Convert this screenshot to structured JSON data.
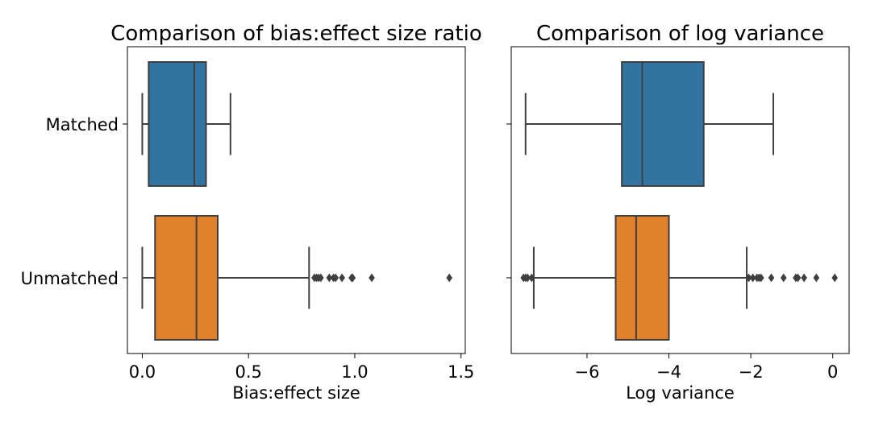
{
  "chart_data": [
    {
      "type": "box",
      "title": "Comparison of bias:effect size ratio",
      "xlabel": "Bias:effect size",
      "ylabel": "",
      "orientation": "horizontal",
      "categories": [
        "Matched",
        "Unmatched"
      ],
      "xlim": [
        -0.07,
        1.52
      ],
      "xticks": [
        0.0,
        0.5,
        1.0,
        1.5
      ],
      "xtick_labels": [
        "0.0",
        "0.5",
        "1.0",
        "1.5"
      ],
      "grid": false,
      "boxes": [
        {
          "category": "Matched",
          "whisker_low": 0.0,
          "q1": 0.03,
          "median": 0.245,
          "q3": 0.3,
          "whisker_high": 0.415,
          "outliers": [],
          "color": "#3274a1"
        },
        {
          "category": "Unmatched",
          "whisker_low": 0.0,
          "q1": 0.06,
          "median": 0.255,
          "q3": 0.355,
          "whisker_high": 0.785,
          "outliers": [
            0.81,
            0.82,
            0.83,
            0.84,
            0.88,
            0.9,
            0.91,
            0.94,
            0.985,
            0.99,
            1.08,
            1.445
          ],
          "color": "#e1812c"
        }
      ]
    },
    {
      "type": "box",
      "title": "Comparison of log variance",
      "xlabel": "Log variance",
      "ylabel": "",
      "orientation": "horizontal",
      "categories": [
        "Matched",
        "Unmatched"
      ],
      "xlim": [
        -7.85,
        0.4
      ],
      "xticks": [
        -6,
        -4,
        -2,
        0
      ],
      "xtick_labels": [
        "−6",
        "−4",
        "−2",
        "0"
      ],
      "grid": false,
      "boxes": [
        {
          "category": "Matched",
          "whisker_low": -7.5,
          "q1": -5.15,
          "median": -4.65,
          "q3": -3.15,
          "whisker_high": -1.45,
          "outliers": [],
          "color": "#3274a1"
        },
        {
          "category": "Unmatched",
          "whisker_low": -7.3,
          "q1": -5.3,
          "median": -4.8,
          "q3": -4.0,
          "whisker_high": -2.1,
          "outliers": [
            -7.55,
            -7.5,
            -7.45,
            -7.35,
            -2.05,
            -1.95,
            -1.85,
            -1.8,
            -1.75,
            -1.5,
            -1.2,
            -0.9,
            -0.85,
            -0.7,
            -0.4,
            0.05
          ],
          "color": "#e1812c"
        }
      ]
    }
  ]
}
